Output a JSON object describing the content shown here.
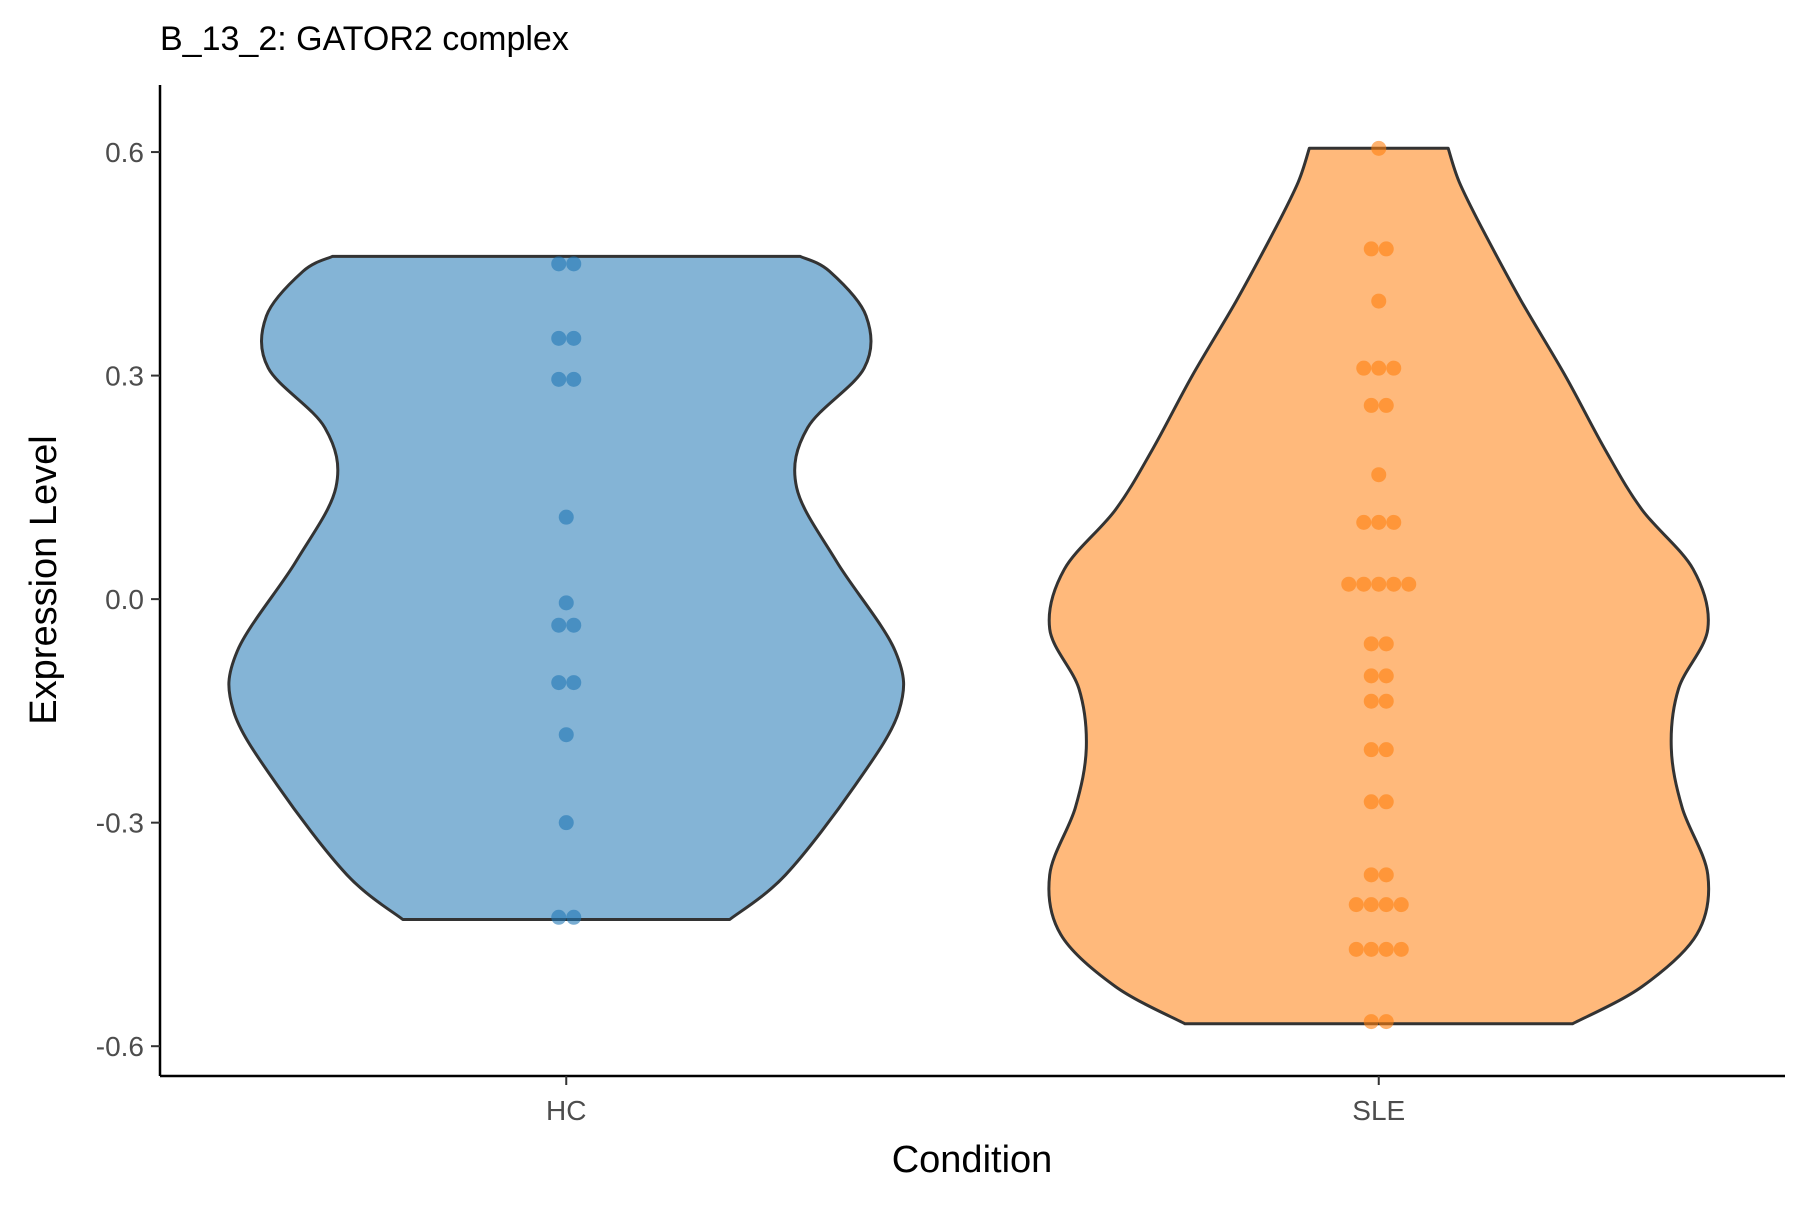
{
  "chart_data": {
    "type": "violin",
    "title": "B_13_2: GATOR2 complex",
    "xlabel": "Condition",
    "ylabel": "Expression Level",
    "categories": [
      "HC",
      "SLE"
    ],
    "ylim": [
      -0.64,
      0.69
    ],
    "y_ticks": [
      0.6,
      0.3,
      0.0,
      -0.3,
      -0.6
    ],
    "y_tick_labels": [
      "0.6",
      "0.3",
      "0.0",
      "-0.3",
      "-0.6"
    ],
    "colors": {
      "HC": "#1f77b4",
      "SLE": "#ff7f0e",
      "outline": "#333333"
    },
    "series": [
      {
        "name": "HC",
        "y_range": [
          -0.43,
          0.46
        ],
        "width_profile": [
          {
            "y": -0.43,
            "w": 0.447
          },
          {
            "y": -0.37,
            "w": 0.6
          },
          {
            "y": -0.25,
            "w": 0.79
          },
          {
            "y": -0.15,
            "w": 0.91
          },
          {
            "y": -0.07,
            "w": 0.9
          },
          {
            "y": 0.05,
            "w": 0.74
          },
          {
            "y": 0.15,
            "w": 0.63
          },
          {
            "y": 0.23,
            "w": 0.66
          },
          {
            "y": 0.31,
            "w": 0.815
          },
          {
            "y": 0.38,
            "w": 0.82
          },
          {
            "y": 0.44,
            "w": 0.72
          },
          {
            "y": 0.46,
            "w": 0.64
          }
        ],
        "points": [
          0.45,
          0.45,
          0.35,
          0.35,
          0.295,
          0.295,
          0.11,
          -0.005,
          -0.035,
          -0.035,
          -0.112,
          -0.112,
          -0.182,
          -0.3,
          -0.427,
          -0.427
        ]
      },
      {
        "name": "SLE",
        "y_range": [
          -0.57,
          0.605
        ],
        "width_profile": [
          {
            "y": -0.57,
            "w": 0.53
          },
          {
            "y": -0.52,
            "w": 0.72
          },
          {
            "y": -0.45,
            "w": 0.87
          },
          {
            "y": -0.37,
            "w": 0.9
          },
          {
            "y": -0.28,
            "w": 0.83
          },
          {
            "y": -0.2,
            "w": 0.8
          },
          {
            "y": -0.12,
            "w": 0.82
          },
          {
            "y": -0.04,
            "w": 0.9
          },
          {
            "y": 0.04,
            "w": 0.86
          },
          {
            "y": 0.12,
            "w": 0.72
          },
          {
            "y": 0.2,
            "w": 0.62
          },
          {
            "y": 0.3,
            "w": 0.51
          },
          {
            "y": 0.4,
            "w": 0.39
          },
          {
            "y": 0.5,
            "w": 0.28
          },
          {
            "y": 0.56,
            "w": 0.22
          },
          {
            "y": 0.605,
            "w": 0.19
          }
        ],
        "points": [
          0.605,
          0.47,
          0.47,
          0.4,
          0.31,
          0.31,
          0.31,
          0.26,
          0.26,
          0.167,
          0.103,
          0.103,
          0.103,
          0.02,
          0.02,
          0.02,
          0.02,
          0.02,
          -0.06,
          -0.06,
          -0.103,
          -0.103,
          -0.137,
          -0.137,
          -0.202,
          -0.202,
          -0.272,
          -0.272,
          -0.37,
          -0.37,
          -0.41,
          -0.41,
          -0.41,
          -0.41,
          -0.47,
          -0.47,
          -0.47,
          -0.47,
          -0.567,
          -0.567
        ]
      }
    ]
  }
}
